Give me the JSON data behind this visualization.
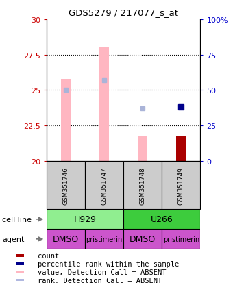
{
  "title": "GDS5279 / 217077_s_at",
  "samples": [
    "GSM351746",
    "GSM351747",
    "GSM351748",
    "GSM351749"
  ],
  "ylim_left": [
    20,
    30
  ],
  "ylim_right": [
    0,
    100
  ],
  "yticks_left": [
    20,
    22.5,
    25,
    27.5,
    30
  ],
  "yticks_right": [
    0,
    25,
    50,
    75,
    100
  ],
  "ytick_labels_right": [
    "0",
    "25",
    "50",
    "75",
    "100%"
  ],
  "bar_values": [
    25.8,
    28.0,
    21.8,
    21.8
  ],
  "bar_colors": [
    "#ffb6c1",
    "#ffb6c1",
    "#ffb6c1",
    "#aa0000"
  ],
  "bar_bottom": 20,
  "rank_values": [
    50,
    57,
    37,
    38
  ],
  "rank_colors": [
    "#aab4d8",
    "#aab4d8",
    "#aab4d8",
    "#00008b"
  ],
  "rank_absent": [
    true,
    true,
    true,
    false
  ],
  "cell_lines": [
    {
      "label": "H929",
      "start": 0,
      "end": 2,
      "color": "#90ee90"
    },
    {
      "label": "U266",
      "start": 2,
      "end": 4,
      "color": "#3dcc3d"
    }
  ],
  "agent_labels": [
    "DMSO",
    "pristimerin",
    "DMSO",
    "pristimerin"
  ],
  "agent_color": "#cc55cc",
  "legend_items": [
    {
      "color": "#aa0000",
      "label": "count"
    },
    {
      "color": "#00008b",
      "label": "percentile rank within the sample"
    },
    {
      "color": "#ffb6c1",
      "label": "value, Detection Call = ABSENT"
    },
    {
      "color": "#b0b8e0",
      "label": "rank, Detection Call = ABSENT"
    }
  ],
  "left_ytick_color": "#cc0000",
  "right_ytick_color": "#0000cc",
  "grid_lines": [
    22.5,
    25,
    27.5
  ],
  "bar_width": 0.25
}
